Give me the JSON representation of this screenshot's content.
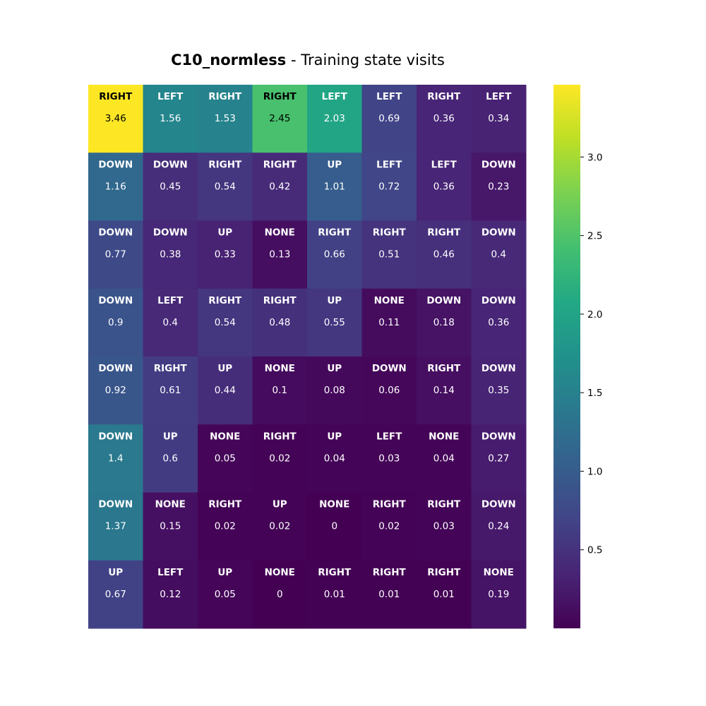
{
  "chart_data": {
    "type": "heatmap",
    "title": "C10_normless - Training state visits",
    "title_bold_part": "C10_normless",
    "title_rest": " - Training state visits",
    "rows": 8,
    "cols": 8,
    "actions": [
      [
        "RIGHT",
        "LEFT",
        "RIGHT",
        "RIGHT",
        "LEFT",
        "LEFT",
        "RIGHT",
        "LEFT"
      ],
      [
        "DOWN",
        "DOWN",
        "RIGHT",
        "RIGHT",
        "UP",
        "LEFT",
        "LEFT",
        "DOWN"
      ],
      [
        "DOWN",
        "DOWN",
        "UP",
        "NONE",
        "RIGHT",
        "RIGHT",
        "RIGHT",
        "DOWN"
      ],
      [
        "DOWN",
        "LEFT",
        "RIGHT",
        "RIGHT",
        "UP",
        "NONE",
        "DOWN",
        "DOWN"
      ],
      [
        "DOWN",
        "RIGHT",
        "UP",
        "NONE",
        "UP",
        "DOWN",
        "RIGHT",
        "DOWN"
      ],
      [
        "DOWN",
        "UP",
        "NONE",
        "RIGHT",
        "UP",
        "LEFT",
        "NONE",
        "DOWN"
      ],
      [
        "DOWN",
        "NONE",
        "RIGHT",
        "UP",
        "NONE",
        "RIGHT",
        "RIGHT",
        "DOWN"
      ],
      [
        "UP",
        "LEFT",
        "UP",
        "NONE",
        "RIGHT",
        "RIGHT",
        "RIGHT",
        "NONE"
      ]
    ],
    "values": [
      [
        3.46,
        1.56,
        1.53,
        2.45,
        2.03,
        0.69,
        0.36,
        0.34
      ],
      [
        1.16,
        0.45,
        0.54,
        0.42,
        1.01,
        0.72,
        0.36,
        0.23
      ],
      [
        0.77,
        0.38,
        0.33,
        0.13,
        0.66,
        0.51,
        0.46,
        0.4
      ],
      [
        0.9,
        0.4,
        0.54,
        0.48,
        0.55,
        0.11,
        0.18,
        0.36
      ],
      [
        0.92,
        0.61,
        0.44,
        0.1,
        0.08,
        0.06,
        0.14,
        0.35
      ],
      [
        1.4,
        0.6,
        0.05,
        0.02,
        0.04,
        0.03,
        0.04,
        0.27
      ],
      [
        1.37,
        0.15,
        0.02,
        0.02,
        0,
        0.02,
        0.03,
        0.24
      ],
      [
        0.67,
        0.12,
        0.05,
        0,
        0.01,
        0.01,
        0.01,
        0.19
      ]
    ],
    "value_labels": [
      [
        "3.46",
        "1.56",
        "1.53",
        "2.45",
        "2.03",
        "0.69",
        "0.36",
        "0.34"
      ],
      [
        "1.16",
        "0.45",
        "0.54",
        "0.42",
        "1.01",
        "0.72",
        "0.36",
        "0.23"
      ],
      [
        "0.77",
        "0.38",
        "0.33",
        "0.13",
        "0.66",
        "0.51",
        "0.46",
        "0.4"
      ],
      [
        "0.9",
        "0.4",
        "0.54",
        "0.48",
        "0.55",
        "0.11",
        "0.18",
        "0.36"
      ],
      [
        "0.92",
        "0.61",
        "0.44",
        "0.1",
        "0.08",
        "0.06",
        "0.14",
        "0.35"
      ],
      [
        "1.4",
        "0.6",
        "0.05",
        "0.02",
        "0.04",
        "0.03",
        "0.04",
        "0.27"
      ],
      [
        "1.37",
        "0.15",
        "0.02",
        "0.02",
        "0",
        "0.02",
        "0.03",
        "0.24"
      ],
      [
        "0.67",
        "0.12",
        "0.05",
        "0",
        "0.01",
        "0.01",
        "0.01",
        "0.19"
      ]
    ],
    "colormap": "viridis",
    "vmin": 0,
    "vmax": 3.46,
    "colorbar": {
      "ticks": [
        0.5,
        1.0,
        1.5,
        2.0,
        2.5,
        3.0
      ],
      "tick_labels": [
        "0.5",
        "1.0",
        "1.5",
        "2.0",
        "2.5",
        "3.0"
      ],
      "position": "right"
    }
  }
}
